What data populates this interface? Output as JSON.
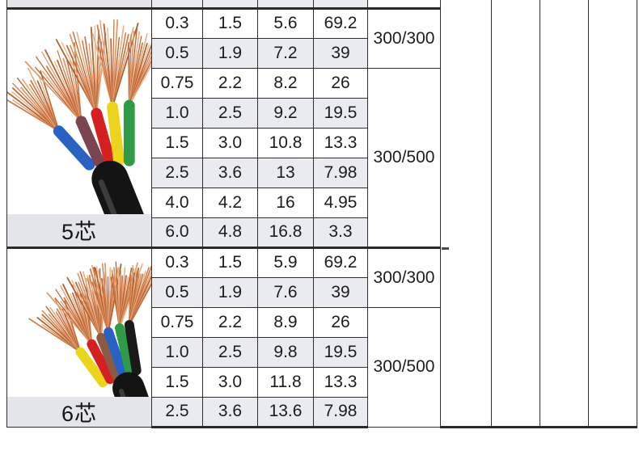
{
  "colors": {
    "row_shade": "#e9ebf1",
    "label_band": "#e3e5ea",
    "red_text": "#e8000a",
    "text": "#1c1c1c",
    "border": "#2e2e2e"
  },
  "table": {
    "sections": [
      {
        "label": "5芯",
        "rows": [
          [
            "0.3",
            "1.5",
            "5.6",
            "69.2"
          ],
          [
            "0.5",
            "1.9",
            "7.2",
            "39"
          ],
          [
            "0.75",
            "2.2",
            "8.2",
            "26"
          ],
          [
            "1.0",
            "2.5",
            "9.2",
            "19.5"
          ],
          [
            "1.5",
            "3.0",
            "10.8",
            "13.3"
          ],
          [
            "2.5",
            "3.6",
            "13",
            "7.98"
          ],
          [
            "4.0",
            "4.2",
            "16",
            "4.95"
          ],
          [
            "6.0",
            "4.8",
            "16.8",
            "3.3"
          ]
        ],
        "voltage_groups": [
          {
            "label": "300/300",
            "row_span": 2
          },
          {
            "label": "300/500",
            "row_span": 6
          }
        ]
      },
      {
        "label": "6芯",
        "rows": [
          [
            "0.3",
            "1.5",
            "5.9",
            "69.2"
          ],
          [
            "0.5",
            "1.9",
            "7.6",
            "39"
          ],
          [
            "0.75",
            "2.2",
            "8.9",
            "26"
          ],
          [
            "1.0",
            "2.5",
            "9.8",
            "19.5"
          ],
          [
            "1.5",
            "3.0",
            "11.8",
            "13.3"
          ],
          [
            "2.5",
            "3.6",
            "13.6",
            "7.98"
          ]
        ],
        "voltage_groups": [
          {
            "label": "300/300",
            "row_span": 2
          },
          {
            "label": "300/500",
            "row_span": 4
          }
        ]
      }
    ]
  },
  "images": {
    "cable_5_core": {
      "core_colors": [
        "#2a62c4",
        "#7b4450",
        "#d42020",
        "#ecd41c",
        "#2f9a47"
      ],
      "jacket_color": "#141414",
      "copper_palette": [
        "#cd7a48",
        "#e09a6c",
        "#b5602f",
        "#eab388",
        "#c06a38"
      ]
    },
    "cable_6_core": {
      "core_colors": [
        "#ecd41c",
        "#d42020",
        "#8a5a42",
        "#2a62c4",
        "#2f9a47",
        "#1a1a1a"
      ],
      "jacket_color": "#141414",
      "copper_palette": [
        "#cd7a48",
        "#e09a6c",
        "#b5602f",
        "#eab388",
        "#c06a38"
      ]
    }
  }
}
